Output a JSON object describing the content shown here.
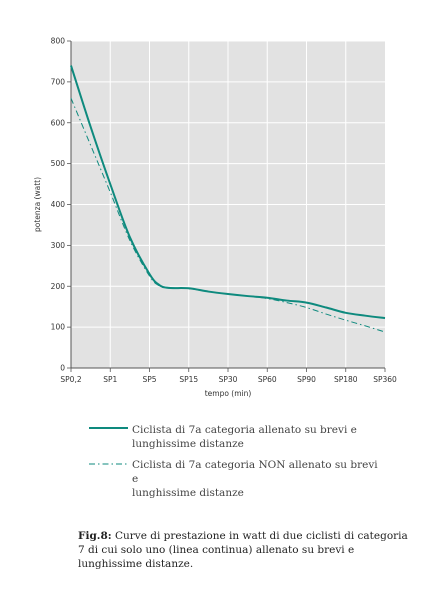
{
  "chart_data": {
    "type": "line",
    "xlabel": "tempo (min)",
    "ylabel": "potenza (watt)",
    "ylim": [
      0,
      800
    ],
    "yticks": [
      0,
      100,
      200,
      300,
      400,
      500,
      600,
      700,
      800
    ],
    "categories": [
      "SP0,2",
      "SP1",
      "SP5",
      "SP15",
      "SP30",
      "SP60",
      "SP90",
      "SP180",
      "SP360"
    ],
    "grid": true,
    "series": [
      {
        "name": "Ciclista di 7a categoria allenato su brevi e lunghissime distanze",
        "style": "solid",
        "color": "#0e8a7e",
        "points": [
          [
            0,
            740
          ],
          [
            0.5,
            590
          ],
          [
            1,
            450
          ],
          [
            1.5,
            320
          ],
          [
            2,
            230
          ],
          [
            2.25,
            203
          ],
          [
            2.5,
            196
          ],
          [
            3,
            195
          ],
          [
            3.5,
            187
          ],
          [
            4,
            181
          ],
          [
            4.5,
            176
          ],
          [
            5,
            172
          ],
          [
            5.5,
            165
          ],
          [
            6,
            160
          ],
          [
            6.5,
            148
          ],
          [
            7,
            135
          ],
          [
            7.5,
            128
          ],
          [
            8,
            122
          ]
        ]
      },
      {
        "name": "Ciclista di 7a categoria NON allenato su brevi e lunghissime distanze",
        "style": "dashdot",
        "color": "#0e8a7e",
        "points": [
          [
            0,
            660
          ],
          [
            0.5,
            545
          ],
          [
            1,
            430
          ],
          [
            1.5,
            312
          ],
          [
            2,
            225
          ],
          [
            2.25,
            201
          ],
          [
            2.5,
            195
          ],
          [
            3,
            194
          ],
          [
            3.5,
            187
          ],
          [
            4,
            181
          ],
          [
            4.5,
            176
          ],
          [
            5,
            170
          ],
          [
            5.5,
            160
          ],
          [
            6,
            148
          ],
          [
            6.5,
            132
          ],
          [
            7,
            117
          ],
          [
            7.5,
            103
          ],
          [
            8,
            88
          ]
        ]
      }
    ]
  },
  "legend": [
    {
      "line1": "Ciclista di 7a categoria allenato su brevi e",
      "line2": "lunghissime distanze"
    },
    {
      "line1": "Ciclista di 7a categoria NON allenato su brevi e",
      "line2": "lunghissime distanze"
    }
  ],
  "caption": {
    "label": "Fig.8:",
    "text": " Curve di prestazione in watt di due ciclisti di categoria 7 di cui solo uno (linea continua) allenato su brevi e lunghissime distanze."
  }
}
